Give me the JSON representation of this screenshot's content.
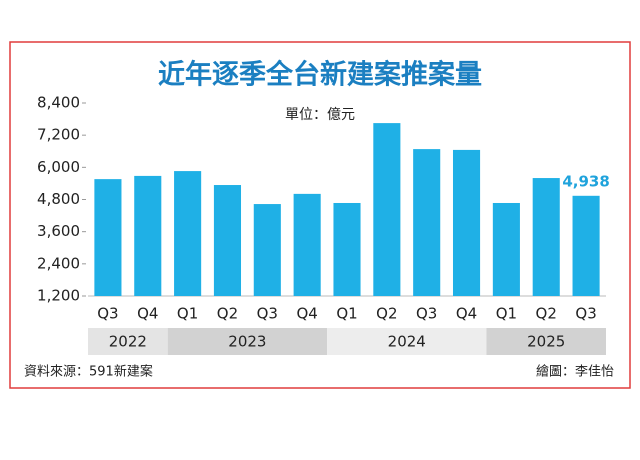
{
  "chart_data": {
    "type": "bar",
    "title": "近年逐季全台新建案推案量",
    "unit_label": "單位：億元",
    "source": "資料來源：591新建案",
    "credit": "繪圖：李佳怡",
    "categories": [
      "Q3",
      "Q4",
      "Q1",
      "Q2",
      "Q3",
      "Q4",
      "Q1",
      "Q2",
      "Q3",
      "Q4",
      "Q1",
      "Q2",
      "Q3"
    ],
    "x_groups": [
      {
        "label": "2022",
        "count": 2
      },
      {
        "label": "2023",
        "count": 4
      },
      {
        "label": "2024",
        "count": 4
      },
      {
        "label": "2025",
        "count": 3
      }
    ],
    "values": [
      5560,
      5680,
      5860,
      5340,
      4630,
      5010,
      4670,
      7650,
      6680,
      6650,
      4670,
      5600,
      4938
    ],
    "value_labels": [
      null,
      null,
      null,
      null,
      null,
      null,
      null,
      null,
      null,
      null,
      null,
      null,
      "4,938"
    ],
    "color": "#1fb0e6",
    "value_label_color": "#1fa3dc",
    "ylim": [
      1200,
      8400
    ],
    "yticks": [
      {
        "value": 1200,
        "label": "1,200"
      },
      {
        "value": 2400,
        "label": "2,400"
      },
      {
        "value": 3600,
        "label": "3,600"
      },
      {
        "value": 4800,
        "label": "4,800"
      },
      {
        "value": 6000,
        "label": "6,000"
      },
      {
        "value": 7200,
        "label": "7,200"
      },
      {
        "value": 8400,
        "label": "8,400"
      }
    ],
    "grid": false
  }
}
